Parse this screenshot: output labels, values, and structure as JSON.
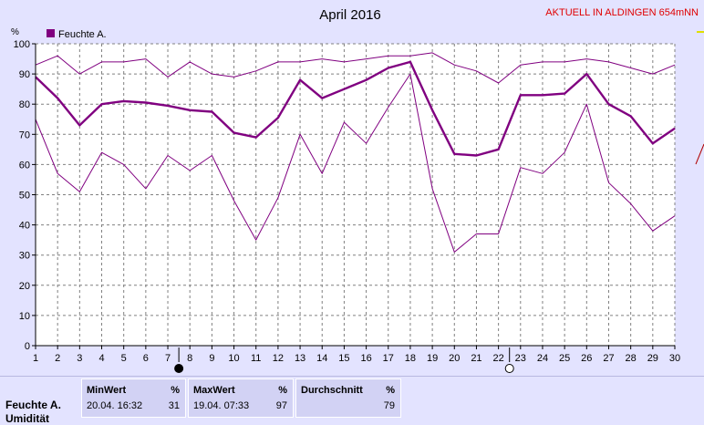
{
  "header": {
    "title": "April 2016",
    "station": "AKTUELL IN ALDINGEN 654mNN"
  },
  "chart_data": {
    "type": "line",
    "title": "April 2016",
    "ylabel": "%",
    "ylim": [
      0,
      100
    ],
    "yticks": [
      0,
      10,
      20,
      30,
      40,
      50,
      60,
      70,
      80,
      90,
      100
    ],
    "x": [
      1,
      2,
      3,
      4,
      5,
      6,
      7,
      8,
      9,
      10,
      11,
      12,
      13,
      14,
      15,
      16,
      17,
      18,
      19,
      20,
      21,
      22,
      23,
      24,
      25,
      26,
      27,
      28,
      29,
      30
    ],
    "grid": true,
    "legend": "top-left",
    "colors": {
      "series": "#800080",
      "grid": "#808080",
      "plot_bg": "#ffffff",
      "panel_bg": "#e3e3ff"
    },
    "series": [
      {
        "name": "Feuchte A.",
        "role": "mean",
        "values": [
          89,
          82,
          73,
          80,
          81,
          80.5,
          79.5,
          78,
          77.5,
          70.5,
          69,
          75.5,
          88,
          82,
          85,
          88,
          92,
          94,
          78,
          63.5,
          63,
          65,
          83,
          83,
          83.5,
          90,
          80,
          76,
          67,
          72
        ]
      },
      {
        "name": "",
        "role": "max",
        "values": [
          93,
          96,
          90,
          94,
          94,
          95,
          89,
          94,
          90,
          89,
          91,
          94,
          94,
          95,
          94,
          95,
          96,
          96,
          97,
          93,
          91,
          87,
          93,
          94,
          94,
          95,
          94,
          92,
          90,
          93
        ]
      },
      {
        "name": "",
        "role": "min",
        "values": [
          75,
          57,
          51,
          64,
          60,
          52,
          63,
          58,
          63,
          48,
          35,
          49,
          70,
          57,
          74,
          67,
          79,
          90,
          52,
          31,
          37,
          37,
          59,
          57,
          64,
          80,
          54,
          47,
          38,
          43
        ]
      }
    ],
    "moon_phases": [
      {
        "day": 7.5,
        "phase": "new"
      },
      {
        "day": 22.5,
        "phase": "full"
      }
    ]
  },
  "stats": {
    "row_label": "Feuchte A.",
    "row_label_2": "Umidität",
    "min": {
      "label": "MinWert",
      "unit": "%",
      "datetime": "20.04.  16:32",
      "value": "31"
    },
    "max": {
      "label": "MaxWert",
      "unit": "%",
      "datetime": "19.04.  07:33",
      "value": "97"
    },
    "avg": {
      "label": "Durchschnitt",
      "unit": "%",
      "value": "79"
    }
  }
}
